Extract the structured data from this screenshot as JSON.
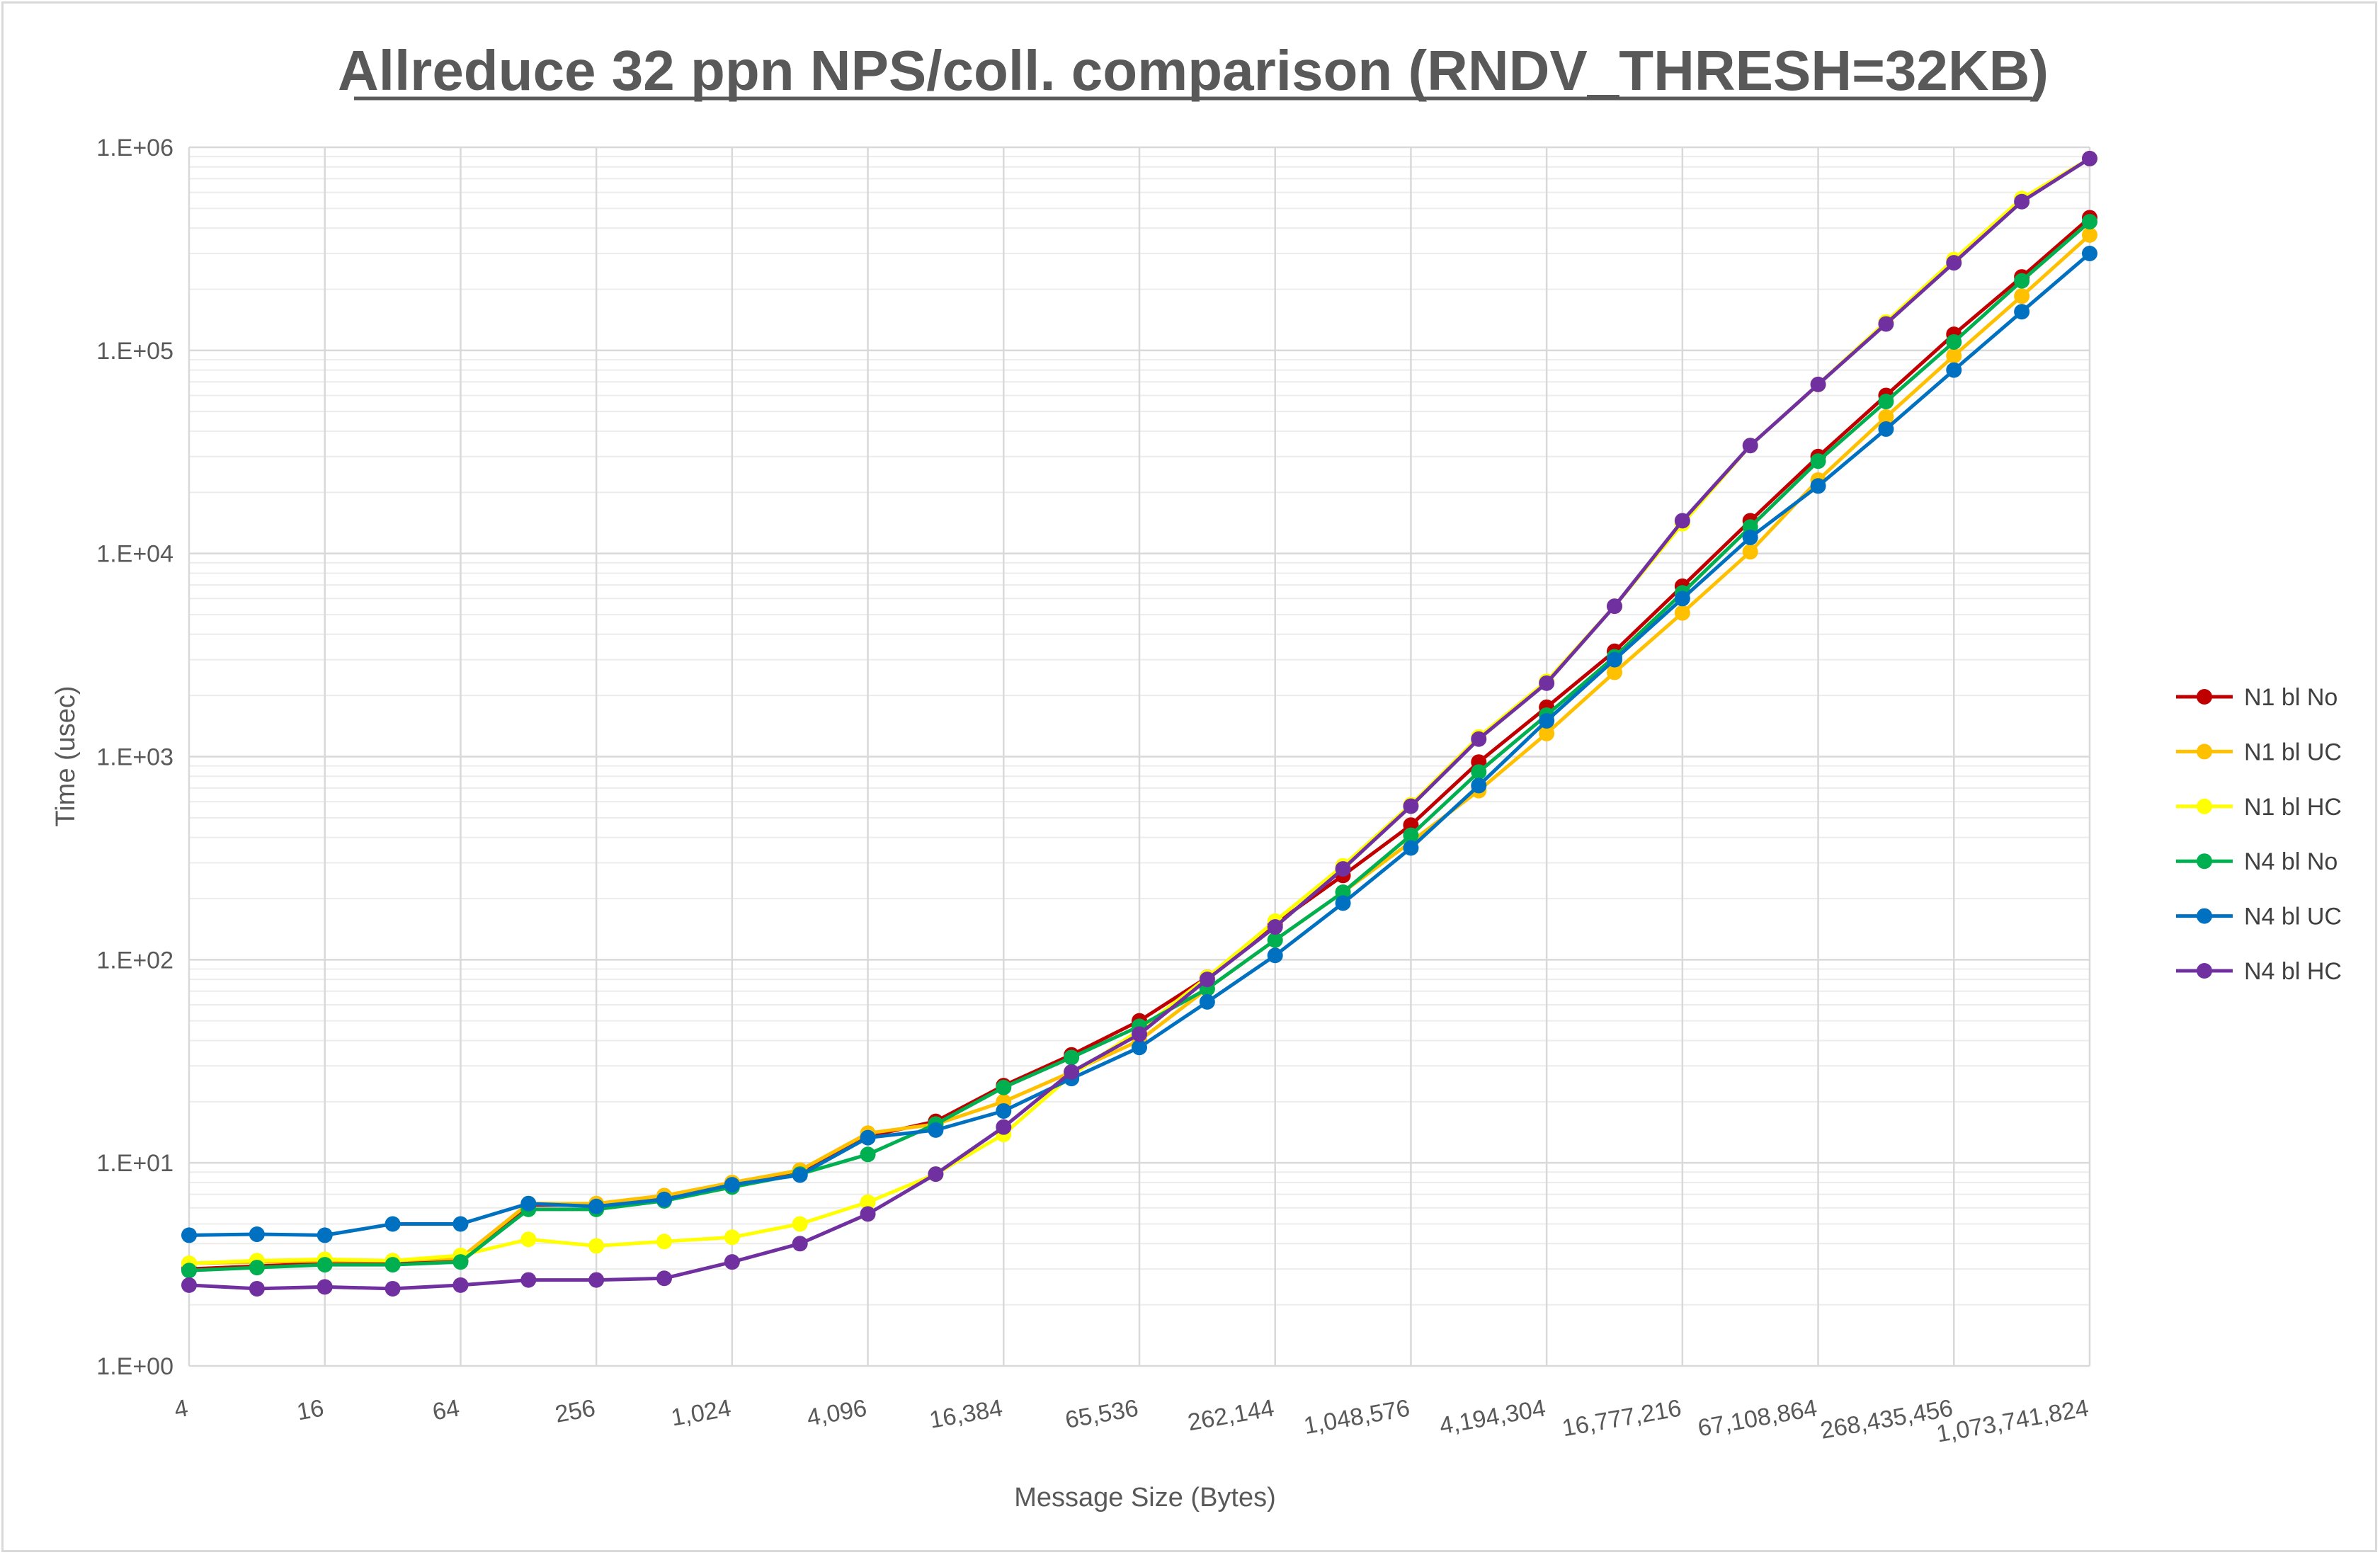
{
  "chart_data": {
    "type": "line",
    "title": "Allreduce 32 ppn NPS/coll. comparison (RNDV_THRESH=32KB)",
    "xlabel": "Message Size (Bytes)",
    "ylabel": "Time (usec)",
    "x": [
      4,
      8,
      16,
      32,
      64,
      128,
      256,
      512,
      1024,
      2048,
      4096,
      8192,
      16384,
      32768,
      65536,
      131072,
      262144,
      524288,
      1048576,
      2097152,
      4194304,
      8388608,
      16777216,
      33554432,
      67108864,
      134217728,
      268435456,
      536870912,
      1073741824
    ],
    "x_tick_labels": [
      "4",
      "16",
      "64",
      "256",
      "1,024",
      "4,096",
      "16,384",
      "65,536",
      "262,144",
      "1,048,576",
      "4,194,304",
      "16,777,216",
      "67,108,864",
      "268,435,456",
      "1,073,741,824"
    ],
    "y_scale": "log",
    "ylim": [
      1,
      1000000
    ],
    "y_tick_labels": [
      "1.E+00",
      "1.E+01",
      "1.E+02",
      "1.E+03",
      "1.E+04",
      "1.E+05",
      "1.E+06"
    ],
    "grid": true,
    "legend_position": "right",
    "series": [
      {
        "name": "N1 bl No",
        "color": "#c00000",
        "values": [
          3.0,
          3.1,
          3.2,
          3.2,
          3.3,
          6.2,
          6.2,
          6.7,
          7.8,
          9.0,
          13.5,
          16.0,
          24.0,
          34.0,
          50.0,
          82.0,
          150.0,
          260.0,
          460.0,
          940.0,
          1750.0,
          3300.0,
          6900.0,
          14500.0,
          30000.0,
          60000.0,
          120000.0,
          230000.0,
          450000.0
        ]
      },
      {
        "name": "N1 bl UC",
        "color": "#ffc000",
        "values": [
          3.2,
          3.25,
          3.3,
          3.3,
          3.4,
          6.3,
          6.3,
          6.9,
          8.0,
          9.2,
          14.0,
          15.5,
          20.0,
          28.0,
          40.0,
          72.0,
          125.0,
          215.0,
          380.0,
          680.0,
          1300.0,
          2600.0,
          5100.0,
          10200.0,
          23000.0,
          47000.0,
          94000.0,
          185000.0,
          370000.0
        ]
      },
      {
        "name": "N1 bl HC",
        "color": "#ffff00",
        "values": [
          3.2,
          3.3,
          3.35,
          3.3,
          3.5,
          4.2,
          3.9,
          4.1,
          4.3,
          5.0,
          6.4,
          8.8,
          13.8,
          27.0,
          45.0,
          82.0,
          155.0,
          290.0,
          580.0,
          1250.0,
          2350.0,
          5500.0,
          14000.0,
          34000.0,
          68000.0,
          138000.0,
          280000.0,
          560000.0,
          880000.0
        ]
      },
      {
        "name": "N4 bl No",
        "color": "#00b050",
        "values": [
          2.95,
          3.05,
          3.15,
          3.15,
          3.25,
          5.9,
          5.9,
          6.5,
          7.6,
          8.8,
          11.0,
          15.5,
          23.5,
          33.0,
          47.0,
          72.0,
          125.0,
          215.0,
          410.0,
          840.0,
          1600.0,
          3100.0,
          6400.0,
          13500.0,
          28500.0,
          56000.0,
          110000.0,
          220000.0,
          430000.0
        ]
      },
      {
        "name": "N4 bl UC",
        "color": "#0070c0",
        "values": [
          4.4,
          4.45,
          4.4,
          5.0,
          5.0,
          6.3,
          6.1,
          6.6,
          7.8,
          8.7,
          13.3,
          14.5,
          18.0,
          26.0,
          37.0,
          62.0,
          105.0,
          190.0,
          355.0,
          720.0,
          1500.0,
          3000.0,
          6000.0,
          12000.0,
          21500.0,
          41000.0,
          80000.0,
          155000.0,
          300000.0
        ]
      },
      {
        "name": "N4 bl HC",
        "color": "#7030a0",
        "values": [
          2.5,
          2.4,
          2.45,
          2.4,
          2.5,
          2.65,
          2.65,
          2.7,
          3.25,
          4.0,
          5.6,
          8.8,
          15.0,
          28.0,
          43.0,
          80.0,
          145.0,
          280.0,
          570.0,
          1220.0,
          2300.0,
          5500.0,
          14500.0,
          34000.0,
          68000.0,
          135000.0,
          270000.0,
          540000.0,
          880000.0
        ]
      }
    ]
  }
}
